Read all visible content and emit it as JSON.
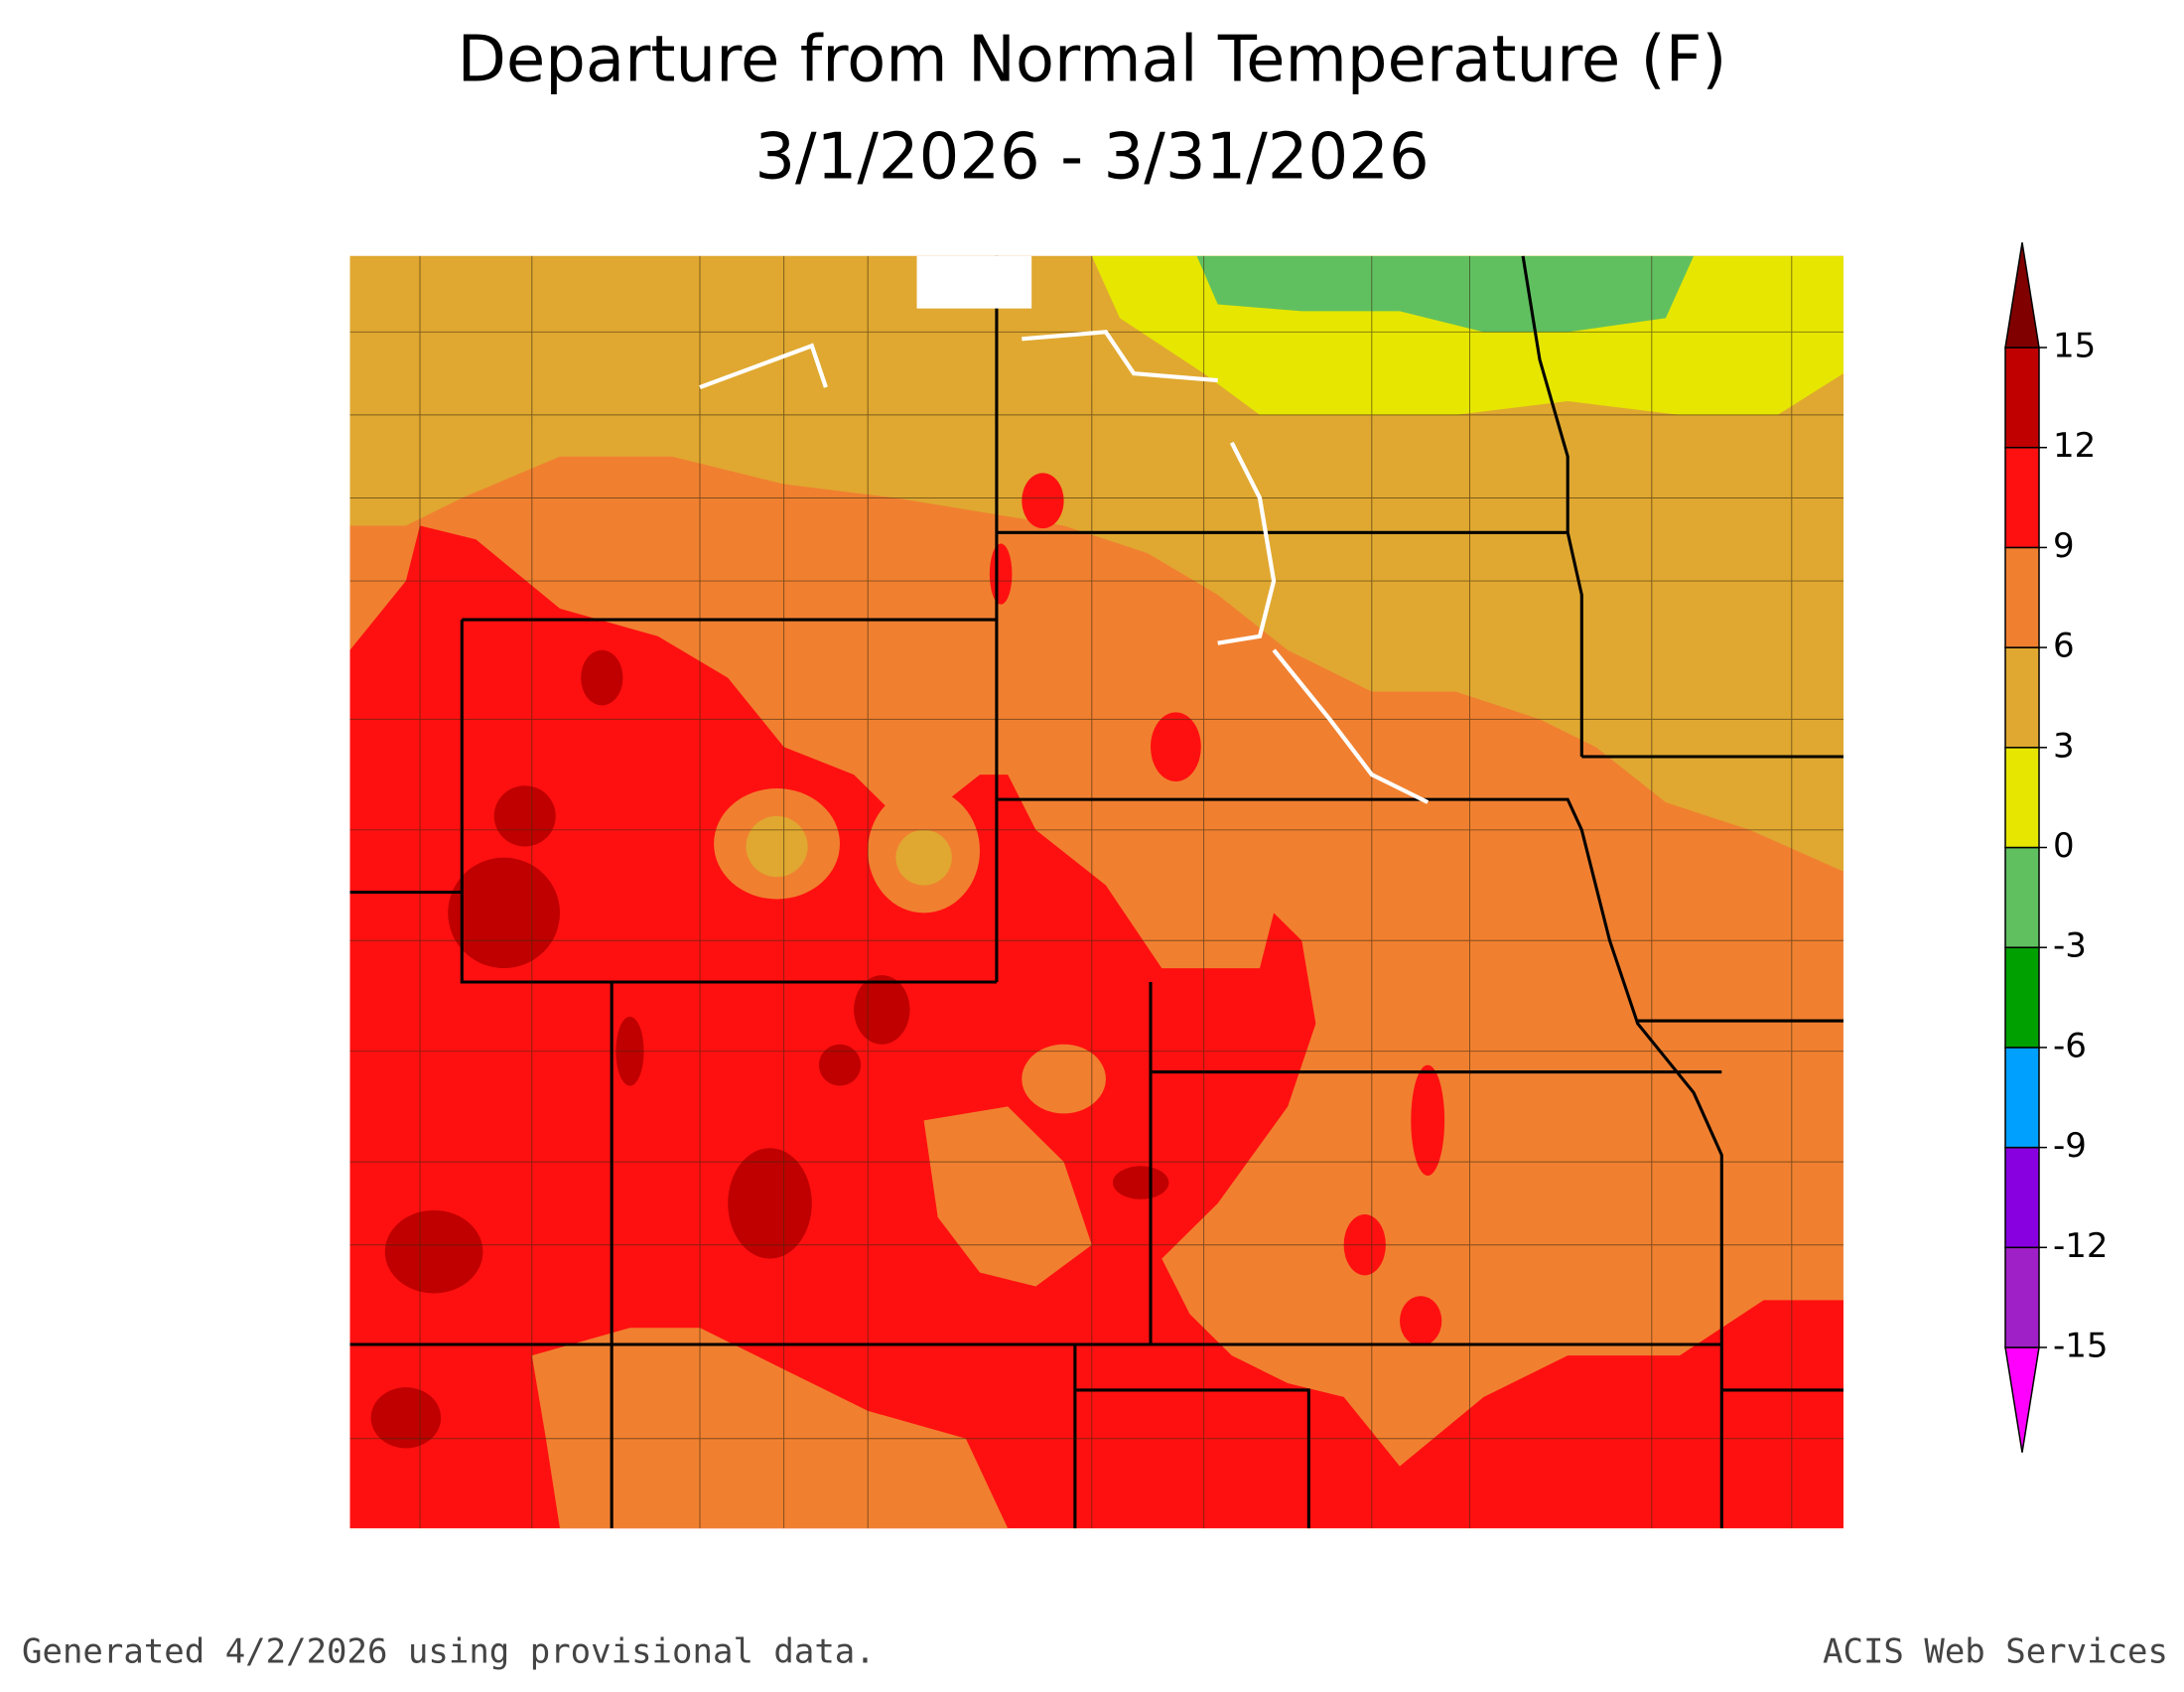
{
  "title": {
    "line1": "Departure from Normal Temperature (F)",
    "line2": "3/1/2026 - 3/31/2026"
  },
  "colorbar": {
    "ticks": [
      -15,
      -12,
      -9,
      -6,
      -3,
      0,
      3,
      6,
      9,
      12,
      15
    ],
    "colors": [
      "#ff00ff",
      "#a020c8",
      "#8800e0",
      "#00a0ff",
      "#00a000",
      "#60c060",
      "#e6e600",
      "#e0a830",
      "#f08030",
      "#ff1010",
      "#c00000",
      "#800000"
    ]
  },
  "footer": {
    "left": "Generated 4/2/2026 using provisional data.",
    "right": "ACIS Web Services"
  }
}
